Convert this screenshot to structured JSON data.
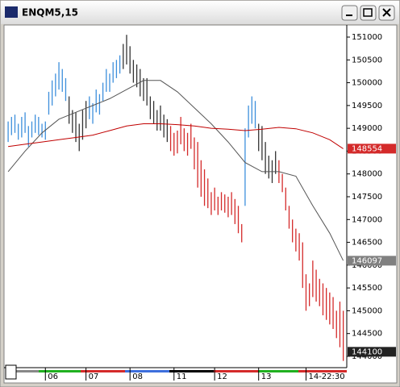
{
  "chart_data": {
    "type": "ohlc",
    "title": "ENQM5,15",
    "xlim": [
      -0.5,
      99.8
    ],
    "ylim": [
      143770,
      151230
    ],
    "yticks": [
      144000,
      144500,
      145000,
      145500,
      146000,
      146500,
      147000,
      147500,
      148000,
      148500,
      149000,
      149500,
      150000,
      150500,
      151000
    ],
    "xticks": [
      {
        "value": 11,
        "label": "06"
      },
      {
        "value": 23,
        "label": "07"
      },
      {
        "value": 36,
        "label": "08"
      },
      {
        "value": 49,
        "label": "11"
      },
      {
        "value": 61,
        "label": "12"
      },
      {
        "value": 74,
        "label": "13"
      },
      {
        "value": 88,
        "label": "14-22:30"
      }
    ],
    "segments": [
      {
        "color": "#3d8fdc",
        "x": [
          0,
          1,
          2,
          3,
          4,
          5,
          6,
          7,
          8,
          9,
          10,
          11,
          12,
          13,
          14,
          15,
          16,
          17
        ],
        "high": [
          149150,
          149250,
          149300,
          149100,
          149250,
          149350,
          149050,
          149150,
          149300,
          149250,
          149100,
          149150,
          149800,
          150050,
          150200,
          150450,
          150300,
          150100
        ],
        "low": [
          148700,
          148850,
          148900,
          148750,
          148800,
          148900,
          148600,
          148800,
          148900,
          148850,
          148800,
          148750,
          149300,
          149500,
          149700,
          149850,
          149800,
          149600
        ]
      },
      {
        "color": "#333333",
        "x": [
          18,
          19,
          20,
          21,
          22,
          23
        ],
        "high": [
          149700,
          149400,
          149350,
          149100,
          149400,
          149600
        ],
        "low": [
          149100,
          148900,
          148700,
          148500,
          148750,
          149000
        ]
      },
      {
        "color": "#3d8fdc",
        "x": [
          24,
          25,
          26,
          27,
          28,
          29,
          30,
          31,
          32,
          33
        ],
        "high": [
          149700,
          149550,
          149850,
          149750,
          150000,
          150300,
          150200,
          150450,
          150500,
          150600
        ],
        "low": [
          149200,
          149100,
          149350,
          149300,
          149600,
          149800,
          149800,
          150000,
          150100,
          150200
        ]
      },
      {
        "color": "#333333",
        "x": [
          34,
          35,
          36,
          37,
          38,
          39,
          40,
          41,
          42,
          43,
          44,
          45,
          46,
          47
        ],
        "high": [
          150850,
          151050,
          150800,
          150500,
          150400,
          150300,
          150100,
          150100,
          149700,
          149600,
          149400,
          149500,
          149300,
          149200
        ],
        "low": [
          150300,
          150400,
          150200,
          150000,
          149900,
          149700,
          149600,
          149500,
          149200,
          149100,
          148950,
          148950,
          148800,
          148700
        ]
      },
      {
        "color": "#d42a2a",
        "x": [
          48,
          49,
          50,
          51,
          52,
          53,
          54,
          55,
          56,
          57,
          58,
          59,
          60,
          61,
          62,
          63,
          64,
          65,
          66,
          67,
          68,
          69
        ],
        "high": [
          149050,
          148900,
          148950,
          149250,
          149000,
          148900,
          149100,
          148800,
          148700,
          148300,
          148100,
          147900,
          147600,
          147700,
          147500,
          147600,
          147550,
          147500,
          147600,
          147450,
          147300,
          146900
        ],
        "low": [
          148500,
          148400,
          148450,
          148650,
          148500,
          148400,
          148550,
          148100,
          147700,
          147500,
          147300,
          147250,
          147100,
          147200,
          147100,
          147200,
          147150,
          147050,
          147100,
          146900,
          146700,
          146500
        ]
      },
      {
        "color": "#3d8fdc",
        "x": [
          70,
          71,
          72,
          73
        ],
        "high": [
          149000,
          149500,
          149700,
          149600
        ],
        "low": [
          147300,
          148800,
          149100,
          149000
        ]
      },
      {
        "color": "#333333",
        "x": [
          74,
          75,
          76,
          77,
          78,
          79
        ],
        "high": [
          149100,
          149050,
          148700,
          148400,
          148300,
          148500
        ],
        "low": [
          148500,
          148300,
          148000,
          147900,
          147800,
          148000
        ]
      },
      {
        "color": "#d42a2a",
        "x": [
          80,
          81,
          82,
          83,
          84,
          85,
          86,
          87,
          88,
          89,
          90,
          91,
          92,
          93,
          94,
          95,
          96,
          97,
          98,
          99
        ],
        "high": [
          148300,
          148000,
          147700,
          147300,
          147000,
          146800,
          146700,
          146500,
          145800,
          145600,
          146100,
          145900,
          145700,
          145600,
          145500,
          145400,
          145300,
          145000,
          145200,
          145000
        ],
        "low": [
          147800,
          147600,
          147200,
          146800,
          146500,
          146300,
          146100,
          145500,
          145000,
          145100,
          145300,
          145200,
          145100,
          144900,
          144800,
          144700,
          144600,
          144400,
          144200,
          143900
        ]
      }
    ],
    "lines": [
      {
        "color": "#555555",
        "x": [
          0,
          5,
          10,
          15,
          20,
          25,
          30,
          35,
          40,
          45,
          50,
          55,
          60,
          65,
          70,
          75,
          80,
          85,
          90,
          95,
          99
        ],
        "values": [
          148050,
          148500,
          148900,
          149200,
          149350,
          149500,
          149650,
          149850,
          150050,
          150050,
          149800,
          149450,
          149100,
          148700,
          148250,
          148050,
          148050,
          147950,
          147300,
          146700,
          146100
        ]
      },
      {
        "color": "#c00000",
        "x": [
          0,
          5,
          10,
          15,
          20,
          25,
          30,
          35,
          40,
          45,
          50,
          55,
          60,
          65,
          70,
          75,
          80,
          85,
          90,
          95,
          99
        ],
        "values": [
          148600,
          148650,
          148700,
          148750,
          148800,
          148850,
          148950,
          149050,
          149100,
          149100,
          149080,
          149050,
          149000,
          148980,
          148950,
          148980,
          149020,
          148990,
          148900,
          148750,
          148554
        ]
      }
    ],
    "price_labels": [
      {
        "value": 148554,
        "color": "#d42a2a"
      },
      {
        "value": 146097,
        "color": "#808080"
      },
      {
        "value": 144100,
        "color": "#222222"
      }
    ]
  }
}
